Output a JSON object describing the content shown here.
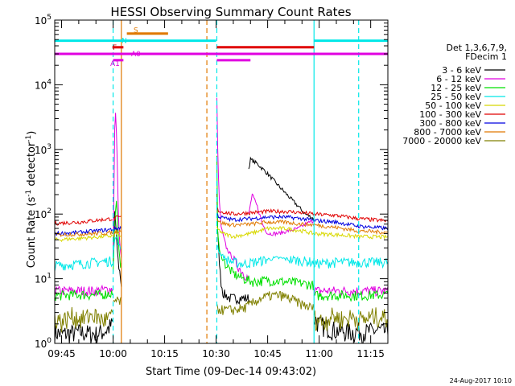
{
  "chart_data": {
    "type": "line",
    "title": "HESSI Observing Summary Count Rates",
    "xlabel": "Start Time (09-Dec-14 09:43:02)",
    "ylabel_main": "Count Rate (s",
    "ylabel_sup1": "-1",
    "ylabel_mid": " detector",
    "ylabel_sup2": "-1",
    "ylabel_end": ")",
    "x_range_min": [
      -2.0,
      95.0
    ],
    "y_log_range": [
      0,
      5
    ],
    "x_ticks": [
      {
        "min": 0,
        "label": "09:45"
      },
      {
        "min": 15,
        "label": "10:00"
      },
      {
        "min": 30,
        "label": "10:15"
      },
      {
        "min": 45,
        "label": "10:30"
      },
      {
        "min": 60,
        "label": "10:45"
      },
      {
        "min": 75,
        "label": "11:00"
      },
      {
        "min": 90,
        "label": "11:15"
      }
    ],
    "y_ticks": [
      {
        "exp": 0,
        "base": "10",
        "sup": "0"
      },
      {
        "exp": 1,
        "base": "10",
        "sup": "1"
      },
      {
        "exp": 2,
        "base": "10",
        "sup": "2"
      },
      {
        "exp": 3,
        "base": "10",
        "sup": "3"
      },
      {
        "exp": 4,
        "base": "10",
        "sup": "4"
      },
      {
        "exp": 5,
        "base": "10",
        "sup": "5"
      }
    ],
    "legend": {
      "header": [
        "Det 1,3,6,7,9,",
        "FDecim 1"
      ],
      "entries": [
        {
          "label": "3 - 6 keV",
          "color": "#000000"
        },
        {
          "label": "6 - 12 keV",
          "color": "#e000e0"
        },
        {
          "label": "12 - 25 keV",
          "color": "#00e000"
        },
        {
          "label": "25 - 50 keV",
          "color": "#00e8e8"
        },
        {
          "label": "50 - 100 keV",
          "color": "#d8d800"
        },
        {
          "label": "100 - 300 keV",
          "color": "#e00000"
        },
        {
          "label": "300 - 800 keV",
          "color": "#0000e0"
        },
        {
          "label": "800 - 7000 keV",
          "color": "#e07800"
        },
        {
          "label": "7000 - 20000 keV",
          "color": "#808000"
        }
      ]
    },
    "flags": [
      {
        "label": "N",
        "color": "#00e8e8",
        "level": 48000,
        "segments": [
          [
            -2,
            45.0
          ],
          [
            73.5,
            95
          ]
        ]
      },
      {
        "label": "S",
        "color": "#e07800",
        "level": 62000,
        "segments": [
          [
            19,
            31
          ]
        ]
      },
      {
        "label": "F",
        "color": "#e00000",
        "level": 38000,
        "segments": [
          [
            14.8,
            18.0
          ],
          [
            45.2,
            73.5
          ]
        ]
      },
      {
        "label": "A0",
        "color": "#e000e0",
        "level": 30000,
        "segments": [
          [
            -2,
            95
          ]
        ]
      },
      {
        "label": "A1",
        "color": "#e000e0",
        "level": 24000,
        "segments": [
          [
            15.0,
            18.0
          ],
          [
            45.2,
            55.0
          ]
        ]
      }
    ],
    "vlines": [
      {
        "min": 15.0,
        "color": "#00e8e8",
        "dashed": true
      },
      {
        "min": 17.4,
        "color": "#e07800",
        "dashed": false
      },
      {
        "min": 42.3,
        "color": "#e07800",
        "dashed": true
      },
      {
        "min": 45.2,
        "color": "#00e8e8",
        "dashed": true
      },
      {
        "min": 73.5,
        "color": "#00e8e8",
        "dashed": false
      },
      {
        "min": 86.5,
        "color": "#00e8e8",
        "dashed": true
      }
    ],
    "series": [
      {
        "name": "3 - 6 keV",
        "color": "#000000",
        "segments": [
          {
            "x": [
              -2,
              0,
              5,
              10,
              13,
              14.8
            ],
            "y": [
              1.5,
              1.4,
              1.5,
              1.4,
              1.6,
              2
            ]
          },
          {
            "x": [
              15,
              15.5,
              16,
              16.5,
              17,
              17.4
            ],
            "y": [
              15,
              120,
              40,
              18,
              12,
              8
            ]
          },
          {
            "x": [
              45.2,
              45.4,
              45.8,
              46.3,
              47,
              49,
              52,
              54.5
            ],
            "y": [
              250,
              60,
              25,
              10,
              6,
              5,
              5,
              5
            ]
          },
          {
            "x": [
              54.5,
              55,
              57,
              60,
              63,
              66,
              69,
              71,
              73.5
            ],
            "y": [
              500,
              700,
              600,
              420,
              280,
              190,
              130,
              100,
              85
            ]
          },
          {
            "x": [
              73.5,
              75,
              80,
              85,
              86.5,
              88,
              92,
              95
            ],
            "y": [
              2.5,
              2,
              1.6,
              1.5,
              1.6,
              1.5,
              1.6,
              1.5
            ]
          }
        ]
      },
      {
        "name": "6 - 12 keV",
        "color": "#e000e0",
        "segments": [
          {
            "x": [
              -2,
              5,
              10,
              14.8
            ],
            "y": [
              6.5,
              6.5,
              6.5,
              7
            ]
          },
          {
            "x": [
              15,
              15.5,
              15.8,
              16.2,
              16.6,
              17,
              17.4
            ],
            "y": [
              25,
              2500,
              4000,
              600,
              80,
              30,
              20
            ]
          },
          {
            "x": [
              45.2,
              45.4,
              45.8,
              46.5,
              48,
              50,
              52,
              54.5
            ],
            "y": [
              6000,
              1500,
              200,
              60,
              30,
              20,
              14,
              10
            ]
          },
          {
            "x": [
              54.5,
              55.5,
              57,
              58.5,
              60,
              63,
              66,
              69,
              71,
              73.5
            ],
            "y": [
              100,
              200,
              130,
              70,
              50,
              50,
              55,
              60,
              70,
              80
            ]
          },
          {
            "x": [
              73.5,
              80,
              86.5,
              95
            ],
            "y": [
              6.5,
              6.5,
              6.5,
              6.5
            ]
          }
        ]
      },
      {
        "name": "12 - 25 keV",
        "color": "#00e000",
        "segments": [
          {
            "x": [
              -2,
              5,
              10,
              14.8
            ],
            "y": [
              5.5,
              5.7,
              5.6,
              6
            ]
          },
          {
            "x": [
              15,
              15.5,
              16,
              16.5,
              17,
              17.4
            ],
            "y": [
              12,
              80,
              160,
              40,
              20,
              15
            ]
          },
          {
            "x": [
              45.2,
              45.4,
              46,
              48,
              50,
              53,
              56,
              60,
              65,
              70,
              73.5
            ],
            "y": [
              800,
              60,
              25,
              16,
              12,
              10,
              9,
              9.5,
              9,
              8.5,
              8
            ]
          },
          {
            "x": [
              73.5,
              80,
              86.5,
              95
            ],
            "y": [
              5.5,
              5.6,
              5.5,
              5.7
            ]
          }
        ]
      },
      {
        "name": "25 - 50 keV",
        "color": "#00e8e8",
        "segments": [
          {
            "x": [
              -2,
              5,
              10,
              14.8
            ],
            "y": [
              16,
              17,
              18,
              19
            ]
          },
          {
            "x": [
              15,
              15.5,
              16,
              16.5,
              17,
              17.4
            ],
            "y": [
              25,
              40,
              45,
              35,
              30,
              28
            ]
          },
          {
            "x": [
              45.2,
              46,
              48,
              50,
              53,
              56,
              60,
              63,
              66,
              70,
              73.5
            ],
            "y": [
              35,
              25,
              20,
              18,
              17,
              18,
              20,
              21,
              20,
              19,
              18
            ]
          },
          {
            "x": [
              73.5,
              80,
              86.5,
              95
            ],
            "y": [
              17,
              18,
              18,
              18
            ]
          }
        ]
      },
      {
        "name": "50 - 100 keV",
        "color": "#d8d800",
        "segments": [
          {
            "x": [
              -2,
              5,
              10,
              14.8
            ],
            "y": [
              40,
              42,
              44,
              46
            ]
          },
          {
            "x": [
              15,
              15.5,
              16,
              16.5,
              17,
              17.4
            ],
            "y": [
              45,
              50,
              52,
              48,
              46,
              45
            ]
          },
          {
            "x": [
              45.2,
              47,
              50,
              55,
              60,
              65,
              70,
              73.5
            ],
            "y": [
              60,
              50,
              45,
              50,
              60,
              60,
              55,
              50
            ]
          },
          {
            "x": [
              73.5,
              80,
              86.5,
              95
            ],
            "y": [
              50,
              48,
              45,
              44
            ]
          }
        ]
      },
      {
        "name": "100 - 300 keV",
        "color": "#e00000",
        "segments": [
          {
            "x": [
              -2,
              5,
              10,
              14.8
            ],
            "y": [
              72,
              75,
              80,
              85
            ]
          },
          {
            "x": [
              15,
              16,
              17.4
            ],
            "y": [
              85,
              88,
              90
            ]
          },
          {
            "x": [
              45.2,
              46,
              48,
              50,
              55,
              60,
              65,
              70,
              73.5
            ],
            "y": [
              120,
              110,
              105,
              100,
              105,
              110,
              110,
              105,
              100
            ]
          },
          {
            "x": [
              73.5,
              80,
              86.5,
              95
            ],
            "y": [
              100,
              95,
              85,
              78
            ]
          }
        ]
      },
      {
        "name": "300 - 800 keV",
        "color": "#0000e0",
        "segments": [
          {
            "x": [
              -2,
              5,
              10,
              14.8
            ],
            "y": [
              50,
              52,
              55,
              58
            ]
          },
          {
            "x": [
              15,
              16,
              17.4
            ],
            "y": [
              58,
              60,
              62
            ]
          },
          {
            "x": [
              45.2,
              46,
              48,
              50,
              55,
              60,
              65,
              70,
              73.5
            ],
            "y": [
              100,
              90,
              85,
              82,
              85,
              90,
              90,
              85,
              80
            ]
          },
          {
            "x": [
              73.5,
              80,
              86.5,
              95
            ],
            "y": [
              80,
              75,
              65,
              60
            ]
          }
        ]
      },
      {
        "name": "800 - 7000 keV",
        "color": "#e07800",
        "segments": [
          {
            "x": [
              -2,
              5,
              10,
              14.8
            ],
            "y": [
              48,
              49,
              50,
              52
            ]
          },
          {
            "x": [
              15,
              16,
              17.4
            ],
            "y": [
              52,
              54,
              55
            ]
          },
          {
            "x": [
              45.2,
              46,
              48,
              50,
              55,
              60,
              65,
              70,
              73.5
            ],
            "y": [
              85,
              75,
              70,
              68,
              70,
              75,
              75,
              70,
              68
            ]
          },
          {
            "x": [
              73.5,
              80,
              86.5,
              95
            ],
            "y": [
              68,
              62,
              55,
              52
            ]
          }
        ]
      },
      {
        "name": "7000 - 20000 keV",
        "color": "#808000",
        "segments": [
          {
            "x": [
              -2,
              0,
              3,
              6,
              9,
              12,
              14.8
            ],
            "y": [
              2.6,
              2.2,
              2.7,
              2.4,
              2.8,
              2.3,
              2.6
            ]
          },
          {
            "x": [
              15,
              16,
              17.4
            ],
            "y": [
              4.5,
              4.5,
              4.5
            ]
          },
          {
            "x": [
              45.2,
              47,
              50,
              53,
              55,
              58,
              61,
              64,
              67,
              70,
              73.5
            ],
            "y": [
              3.5,
              3.3,
              3.3,
              3.5,
              4,
              5,
              5.5,
              5.5,
              4.8,
              4,
              3.5
            ]
          },
          {
            "x": [
              73.5,
              76,
              79,
              82,
              85,
              88,
              91,
              95
            ],
            "y": [
              2.5,
              2.2,
              2.7,
              2.4,
              2.6,
              2.3,
              2.7,
              2.5
            ]
          }
        ]
      }
    ]
  },
  "footer": {
    "date_stamp": "24-Aug-2017 10:10"
  }
}
